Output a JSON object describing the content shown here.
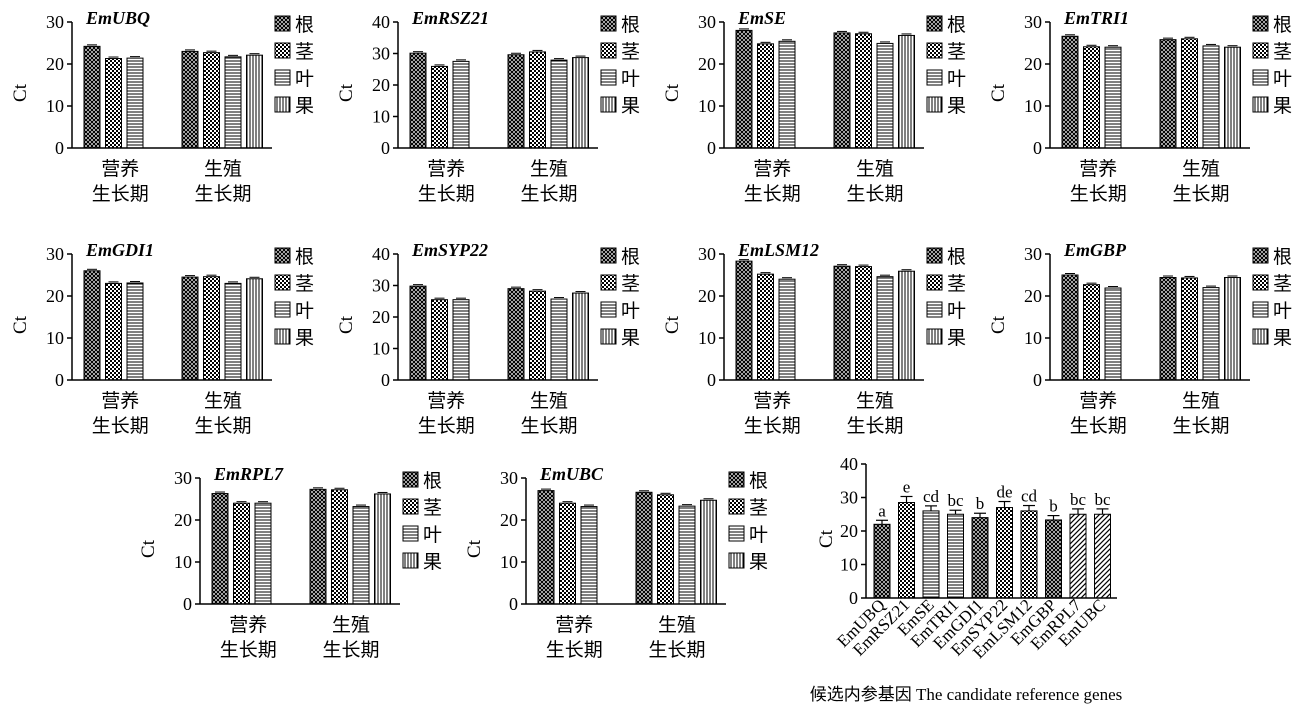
{
  "legend_labels": [
    "根",
    "茎",
    "叶",
    "果"
  ],
  "y_label": "Ct",
  "stage_labels": [
    [
      "营养",
      "生长期"
    ],
    [
      "生殖",
      "生长期"
    ]
  ],
  "chart_data": [
    {
      "type": "bar",
      "title": "EmUBQ",
      "ylim": [
        0,
        30
      ],
      "yticks": [
        0,
        10,
        20,
        30
      ],
      "ylabel": "Ct",
      "categories": [
        "营养生长期",
        "生殖生长期"
      ],
      "series": [
        {
          "name": "根",
          "values": [
            24.2,
            23.0
          ]
        },
        {
          "name": "茎",
          "values": [
            21.3,
            22.7
          ]
        },
        {
          "name": "叶",
          "values": [
            21.4,
            21.7
          ]
        },
        {
          "name": "果",
          "values": [
            null,
            22.1
          ]
        }
      ]
    },
    {
      "type": "bar",
      "title": "EmRSZ21",
      "ylim": [
        0,
        40
      ],
      "yticks": [
        0,
        10,
        20,
        30,
        40
      ],
      "ylabel": "Ct",
      "categories": [
        "营养生长期",
        "生殖生长期"
      ],
      "series": [
        {
          "name": "根",
          "values": [
            30.1,
            29.6
          ]
        },
        {
          "name": "茎",
          "values": [
            25.9,
            30.5
          ]
        },
        {
          "name": "叶",
          "values": [
            27.5,
            27.9
          ]
        },
        {
          "name": "果",
          "values": [
            null,
            28.7
          ]
        }
      ]
    },
    {
      "type": "bar",
      "title": "EmSE",
      "ylim": [
        0,
        30
      ],
      "yticks": [
        0,
        10,
        20,
        30
      ],
      "ylabel": "Ct",
      "categories": [
        "营养生长期",
        "生殖生长期"
      ],
      "series": [
        {
          "name": "根",
          "values": [
            28.0,
            27.4
          ]
        },
        {
          "name": "茎",
          "values": [
            24.8,
            27.2
          ]
        },
        {
          "name": "叶",
          "values": [
            25.4,
            24.9
          ]
        },
        {
          "name": "果",
          "values": [
            null,
            26.8
          ]
        }
      ]
    },
    {
      "type": "bar",
      "title": "EmTRI1",
      "ylim": [
        0,
        30
      ],
      "yticks": [
        0,
        10,
        20,
        30
      ],
      "ylabel": "Ct",
      "categories": [
        "营养生长期",
        "生殖生长期"
      ],
      "series": [
        {
          "name": "根",
          "values": [
            26.6,
            25.8
          ]
        },
        {
          "name": "茎",
          "values": [
            24.1,
            26.0
          ]
        },
        {
          "name": "叶",
          "values": [
            24.0,
            24.3
          ]
        },
        {
          "name": "果",
          "values": [
            null,
            24.0
          ]
        }
      ]
    },
    {
      "type": "bar",
      "title": "EmGDI1",
      "ylim": [
        0,
        30
      ],
      "yticks": [
        0,
        10,
        20,
        30
      ],
      "ylabel": "Ct",
      "categories": [
        "营养生长期",
        "生殖生长期"
      ],
      "series": [
        {
          "name": "根",
          "values": [
            26.0,
            24.5
          ]
        },
        {
          "name": "茎",
          "values": [
            23.0,
            24.6
          ]
        },
        {
          "name": "叶",
          "values": [
            23.1,
            23.0
          ]
        },
        {
          "name": "果",
          "values": [
            null,
            24.1
          ]
        }
      ]
    },
    {
      "type": "bar",
      "title": "EmSYP22",
      "ylim": [
        0,
        40
      ],
      "yticks": [
        0,
        10,
        20,
        30,
        40
      ],
      "ylabel": "Ct",
      "categories": [
        "营养生长期",
        "生殖生长期"
      ],
      "series": [
        {
          "name": "根",
          "values": [
            29.8,
            29.0
          ]
        },
        {
          "name": "茎",
          "values": [
            25.5,
            28.2
          ]
        },
        {
          "name": "叶",
          "values": [
            25.5,
            25.7
          ]
        },
        {
          "name": "果",
          "values": [
            null,
            27.6
          ]
        }
      ]
    },
    {
      "type": "bar",
      "title": "EmLSM12",
      "ylim": [
        0,
        30
      ],
      "yticks": [
        0,
        10,
        20,
        30
      ],
      "ylabel": "Ct",
      "categories": [
        "营养生长期",
        "生殖生长期"
      ],
      "series": [
        {
          "name": "根",
          "values": [
            28.3,
            27.1
          ]
        },
        {
          "name": "茎",
          "values": [
            25.2,
            27.0
          ]
        },
        {
          "name": "叶",
          "values": [
            24.0,
            24.6
          ]
        },
        {
          "name": "果",
          "values": [
            null,
            25.9
          ]
        }
      ]
    },
    {
      "type": "bar",
      "title": "EmGBP",
      "ylim": [
        0,
        30
      ],
      "yticks": [
        0,
        10,
        20,
        30
      ],
      "ylabel": "Ct",
      "categories": [
        "营养生长期",
        "生殖生长期"
      ],
      "series": [
        {
          "name": "根",
          "values": [
            25.0,
            24.4
          ]
        },
        {
          "name": "茎",
          "values": [
            22.7,
            24.3
          ]
        },
        {
          "name": "叶",
          "values": [
            21.9,
            22.0
          ]
        },
        {
          "name": "果",
          "values": [
            null,
            24.4
          ]
        }
      ]
    },
    {
      "type": "bar",
      "title": "EmRPL7",
      "ylim": [
        0,
        30
      ],
      "yticks": [
        0,
        10,
        20,
        30
      ],
      "ylabel": "Ct",
      "categories": [
        "营养生长期",
        "生殖生长期"
      ],
      "series": [
        {
          "name": "根",
          "values": [
            26.3,
            27.3
          ]
        },
        {
          "name": "茎",
          "values": [
            24.0,
            27.2
          ]
        },
        {
          "name": "叶",
          "values": [
            24.0,
            23.2
          ]
        },
        {
          "name": "果",
          "values": [
            null,
            26.2
          ]
        }
      ]
    },
    {
      "type": "bar",
      "title": "EmUBC",
      "ylim": [
        0,
        30
      ],
      "yticks": [
        0,
        10,
        20,
        30
      ],
      "ylabel": "Ct",
      "categories": [
        "营养生长期",
        "生殖生长期"
      ],
      "series": [
        {
          "name": "根",
          "values": [
            27.0,
            26.6
          ]
        },
        {
          "name": "茎",
          "values": [
            24.0,
            26.0
          ]
        },
        {
          "name": "叶",
          "values": [
            23.2,
            23.3
          ]
        },
        {
          "name": "果",
          "values": [
            null,
            24.7
          ]
        }
      ]
    },
    {
      "type": "bar",
      "title": "",
      "ylim": [
        0,
        40
      ],
      "yticks": [
        0,
        10,
        20,
        30,
        40
      ],
      "ylabel": "Ct",
      "xlabel": "候选内参基因 The candidate reference genes",
      "categories": [
        "EmUBQ",
        "EmRSZ21",
        "EmSE",
        "EmTRI1",
        "EmGDI1",
        "EmSYP22",
        "EmLSM12",
        "EmGBP",
        "EmRPL7",
        "EmUBC"
      ],
      "values": [
        22.0,
        28.5,
        26.0,
        25.0,
        24.0,
        27.0,
        26.0,
        23.3,
        25.0,
        25.0
      ],
      "errors": [
        1.2,
        1.8,
        1.5,
        1.2,
        1.3,
        1.8,
        1.6,
        1.3,
        1.6,
        1.6
      ],
      "significance_letters": [
        "a",
        "e",
        "cd",
        "bc",
        "b",
        "de",
        "cd",
        "b",
        "bc",
        "bc"
      ]
    }
  ],
  "colors": {
    "ink": "#000000",
    "background": "#ffffff"
  },
  "pattern_names": [
    "dense-crosshatch",
    "checker",
    "horizontal-stripes",
    "vertical-stripes"
  ]
}
